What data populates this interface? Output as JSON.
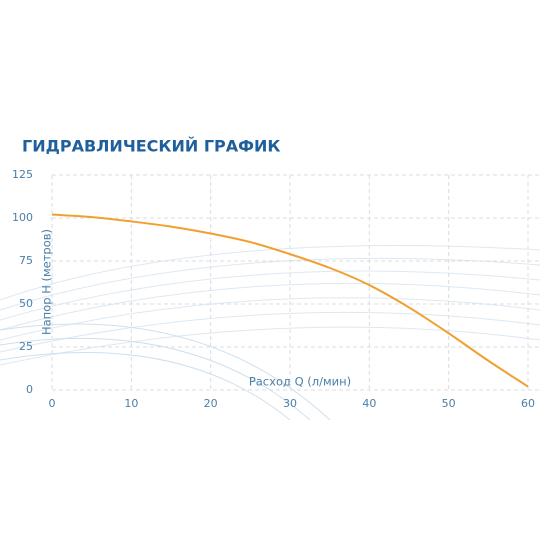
{
  "chart_data": {
    "type": "line",
    "title": "ГИДРАВЛИЧЕСКИЙ ГРАФИК",
    "x_label": "Расход Q (л/мин)",
    "y_label": "Напор H (метров)",
    "x": [
      0,
      5,
      10,
      15,
      20,
      25,
      30,
      35,
      40,
      45,
      50,
      55,
      60
    ],
    "values": [
      102,
      100.5,
      98,
      95,
      91,
      86,
      79,
      71,
      61,
      48,
      33,
      17,
      2
    ],
    "color": "#f0a030",
    "xlim": [
      0,
      60
    ],
    "xticks": [
      0,
      10,
      20,
      30,
      40,
      50,
      60
    ],
    "ylim": [
      0,
      125
    ],
    "yticks": [
      0,
      25,
      50,
      75,
      100,
      125
    ],
    "grid": true
  }
}
